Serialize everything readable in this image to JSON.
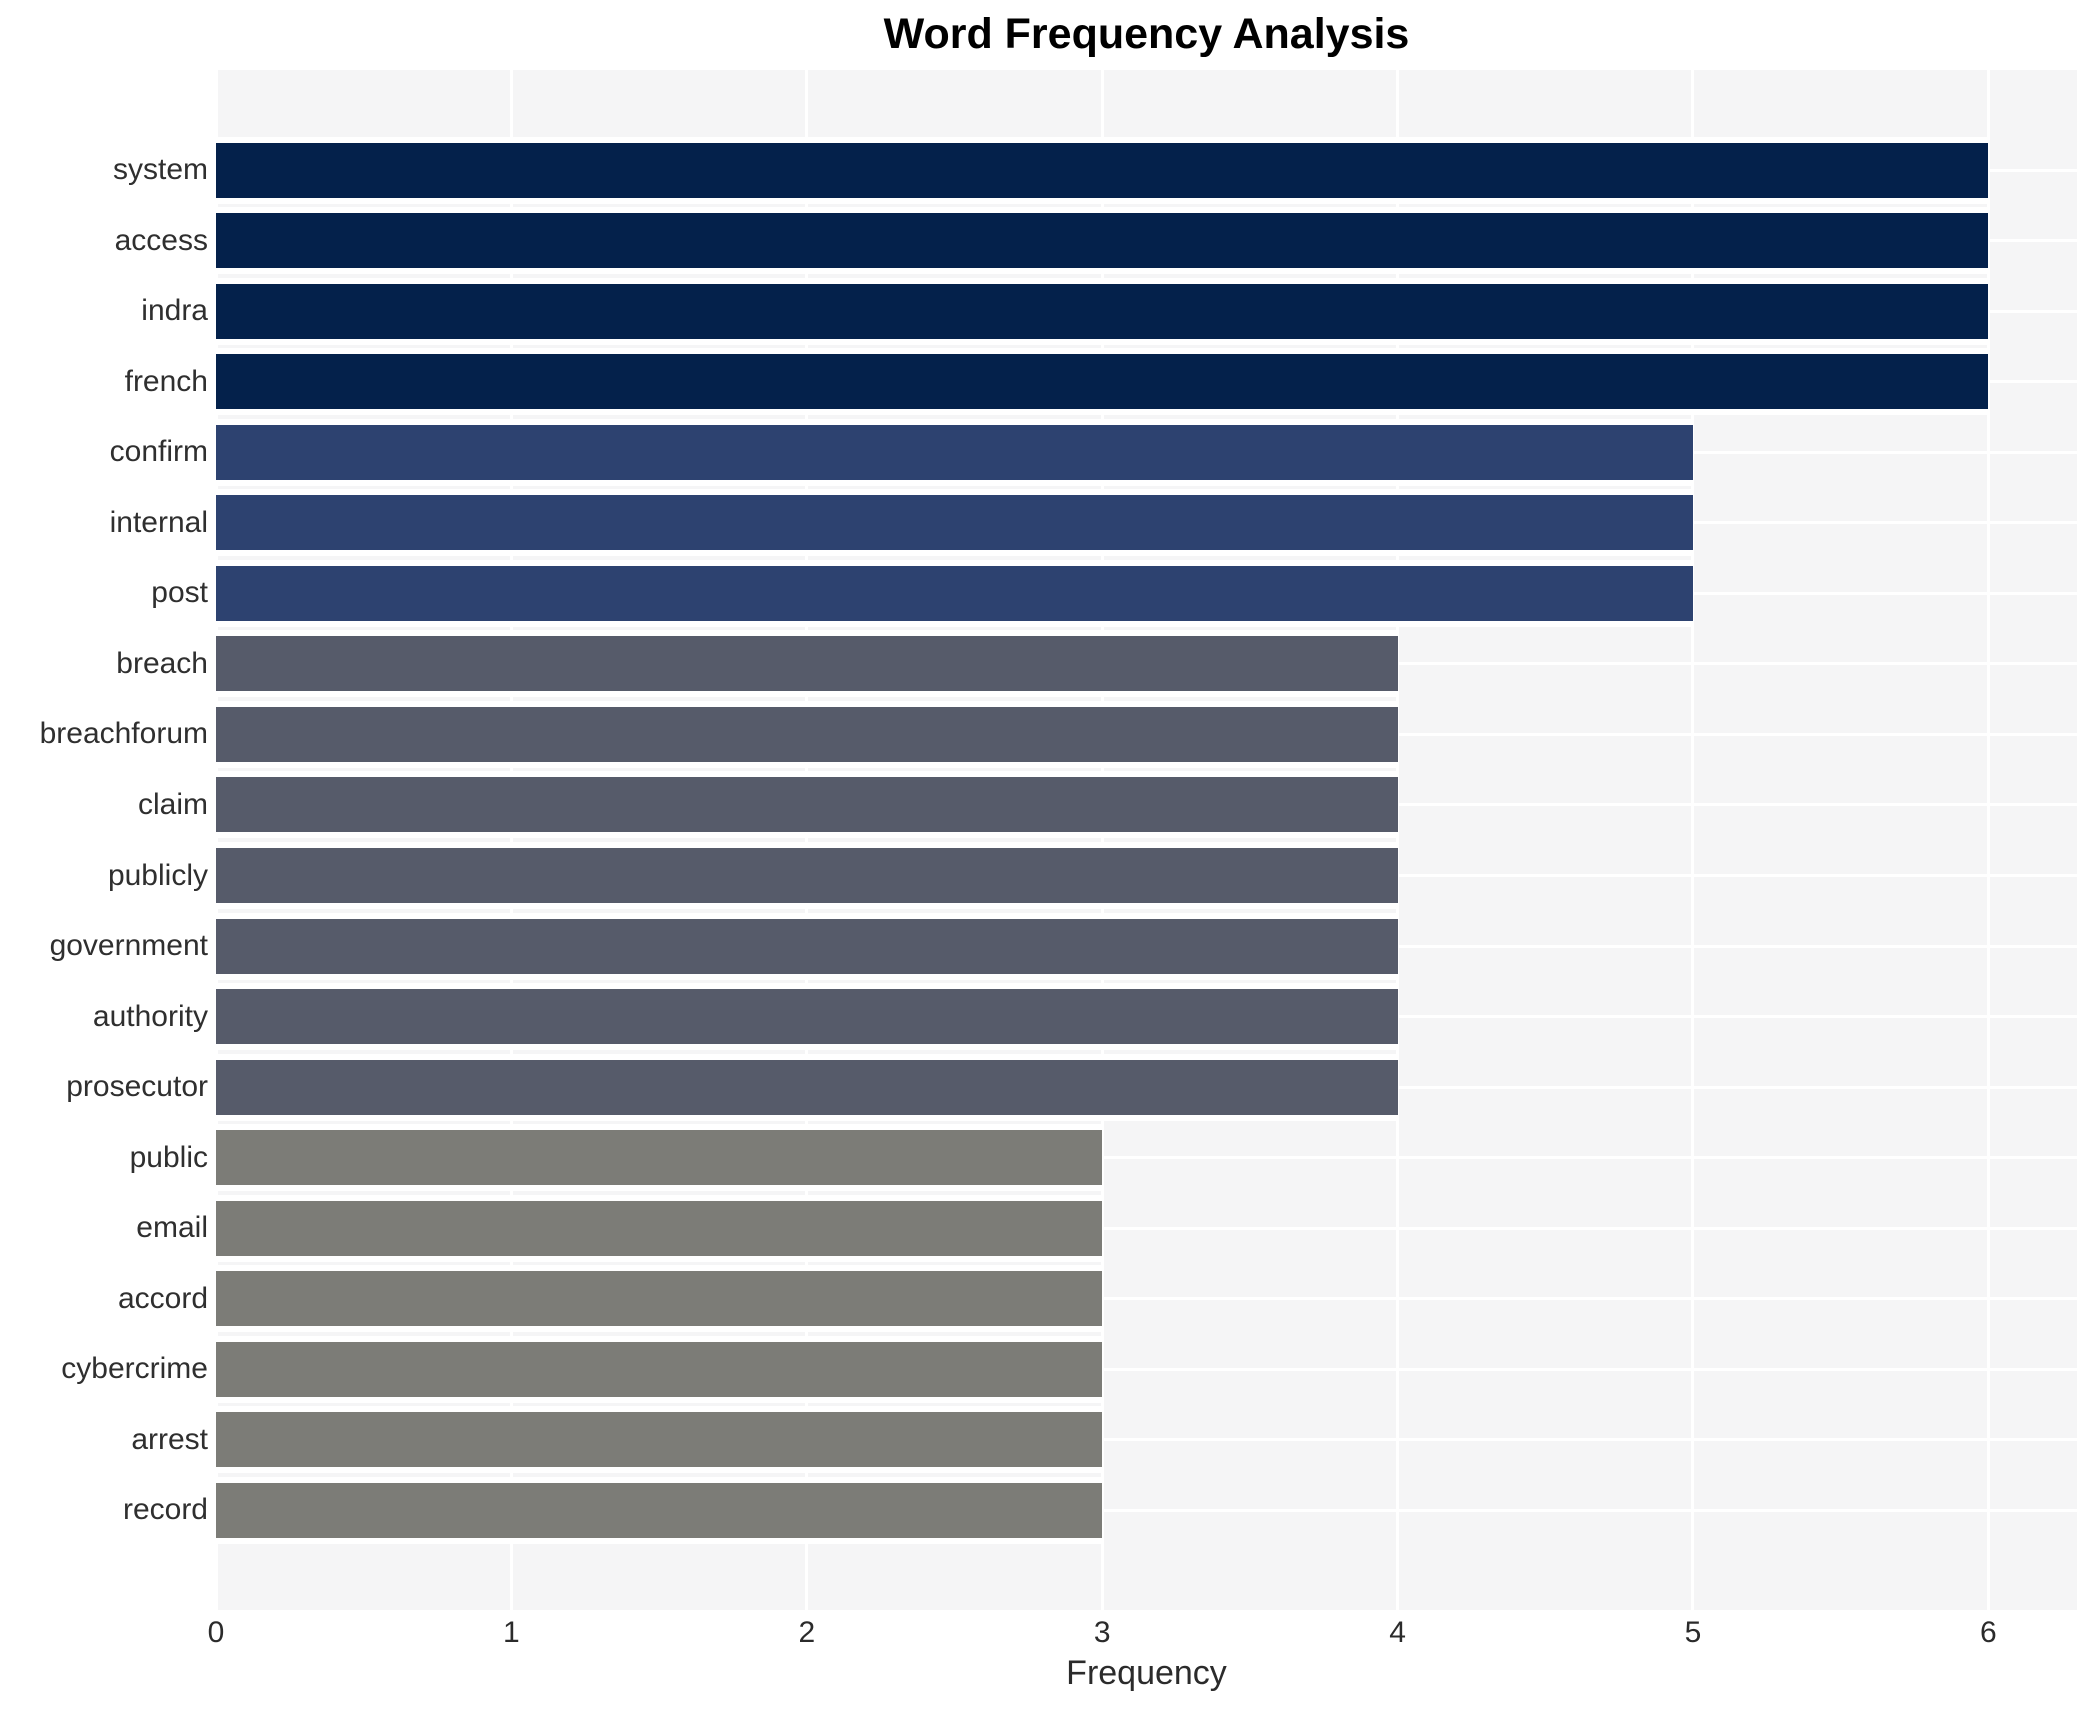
{
  "chart_data": {
    "type": "bar",
    "orientation": "horizontal",
    "title": "Word Frequency Analysis",
    "xlabel": "Frequency",
    "ylabel": "",
    "categories": [
      "system",
      "access",
      "indra",
      "french",
      "confirm",
      "internal",
      "post",
      "breach",
      "breachforum",
      "claim",
      "publicly",
      "government",
      "authority",
      "prosecutor",
      "public",
      "email",
      "accord",
      "cybercrime",
      "arrest",
      "record"
    ],
    "values": [
      6,
      6,
      6,
      6,
      5,
      5,
      5,
      4,
      4,
      4,
      4,
      4,
      4,
      4,
      3,
      3,
      3,
      3,
      3,
      3
    ],
    "xticks": [
      0,
      1,
      2,
      3,
      4,
      5,
      6
    ],
    "xlim": [
      0,
      6.3
    ],
    "grid": true,
    "legend": false,
    "colors": {
      "plot_background": "#f5f5f6",
      "gridline": "#ffffff",
      "bar_by_value": {
        "6": "#04214b",
        "5": "#2d4270",
        "4": "#565b6a",
        "3": "#7c7c77"
      }
    }
  }
}
